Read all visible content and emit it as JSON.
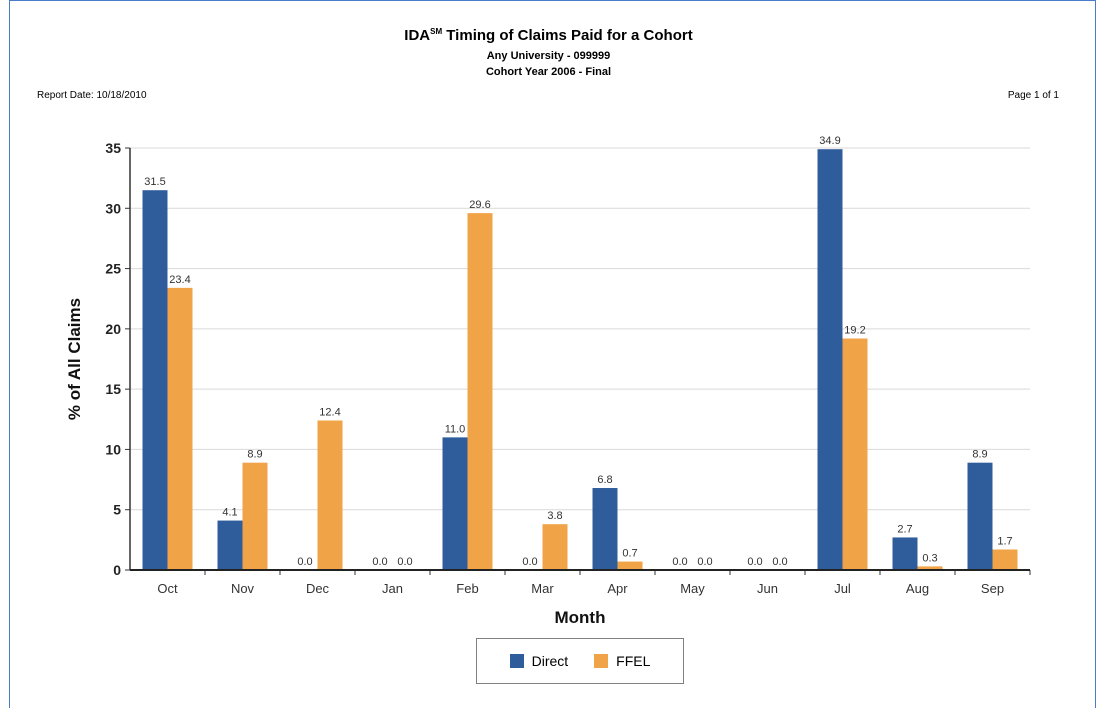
{
  "report": {
    "title_main": "IDA",
    "title_sup": "SM",
    "title_rest": " Timing of Claims Paid for a Cohort",
    "subtitle1": "Any University - 099999",
    "subtitle2": "Cohort Year 2006 - Final",
    "report_date": "Report Date: 10/18/2010",
    "page": "Page 1 of 1"
  },
  "colors": {
    "direct": "#2f5d9c",
    "ffel": "#f0a347"
  },
  "chart_data": {
    "type": "bar",
    "xlabel": "Month",
    "ylabel": "% of All Claims",
    "ylim": [
      0,
      35
    ],
    "yticks": [
      0,
      5,
      10,
      15,
      20,
      25,
      30,
      35
    ],
    "grid": true,
    "legend_position": "bottom-center",
    "categories": [
      "Oct",
      "Nov",
      "Dec",
      "Jan",
      "Feb",
      "Mar",
      "Apr",
      "May",
      "Jun",
      "Jul",
      "Aug",
      "Sep"
    ],
    "series": [
      {
        "name": "Direct",
        "values": [
          31.5,
          4.1,
          0.0,
          0.0,
          11.0,
          0.0,
          6.8,
          0.0,
          0.0,
          34.9,
          2.7,
          8.9
        ]
      },
      {
        "name": "FFEL",
        "values": [
          23.4,
          8.9,
          12.4,
          0.0,
          29.6,
          3.8,
          0.7,
          0.0,
          0.0,
          19.2,
          0.3,
          1.7
        ]
      }
    ]
  }
}
